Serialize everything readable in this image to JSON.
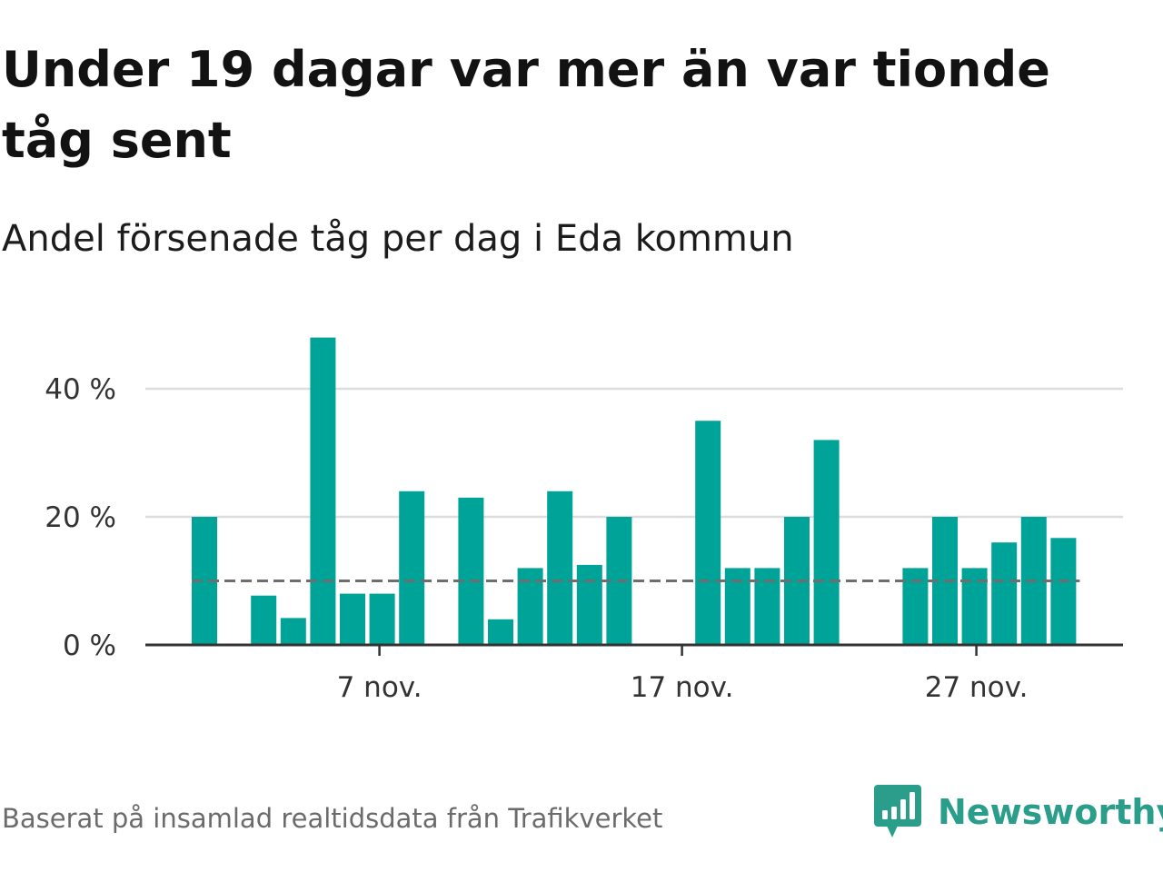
{
  "title": "Under 19 dagar var mer än var tionde tåg sent",
  "subtitle": "Andel försenade tåg per dag i Eda kommun",
  "source": "Baserat på insamlad realtidsdata från Trafikverket",
  "brand": {
    "name": "Newsworthy",
    "icon": "newsworthy-logo-icon",
    "color": "#2a9d8b"
  },
  "colors": {
    "bar": "#00a398",
    "grid": "#dddddd",
    "axis": "#333333",
    "reference": "#6e6e6e"
  },
  "chart_data": {
    "type": "bar",
    "x_unit": "day",
    "x": [
      "1 nov.",
      "2 nov.",
      "3 nov.",
      "4 nov.",
      "5 nov.",
      "6 nov.",
      "7 nov.",
      "8 nov.",
      "9 nov.",
      "10 nov.",
      "11 nov.",
      "12 nov.",
      "13 nov.",
      "14 nov.",
      "15 nov.",
      "16 nov.",
      "17 nov.",
      "18 nov.",
      "19 nov.",
      "20 nov.",
      "21 nov.",
      "22 nov.",
      "23 nov.",
      "24 nov.",
      "25 nov.",
      "26 nov.",
      "27 nov.",
      "28 nov.",
      "29 nov.",
      "30 nov."
    ],
    "values": [
      20,
      0,
      7.7,
      4.2,
      48,
      8,
      8,
      24,
      0,
      23,
      4,
      12,
      24,
      12.5,
      20,
      0,
      0,
      35,
      12,
      12,
      20,
      32,
      0,
      0,
      12,
      20,
      12,
      16,
      20,
      16.7
    ],
    "xticks": [
      {
        "index": 6,
        "label": "7 nov."
      },
      {
        "index": 16,
        "label": "17 nov."
      },
      {
        "index": 26,
        "label": "27 nov."
      }
    ],
    "yticks": [
      {
        "value": 0,
        "label": "0 %"
      },
      {
        "value": 20,
        "label": "20 %"
      },
      {
        "value": 40,
        "label": "40 %"
      }
    ],
    "ylim": [
      0,
      50
    ],
    "reference_line": {
      "value": 10,
      "style": "dashed"
    },
    "grid": true,
    "xlabel": "",
    "ylabel": ""
  }
}
